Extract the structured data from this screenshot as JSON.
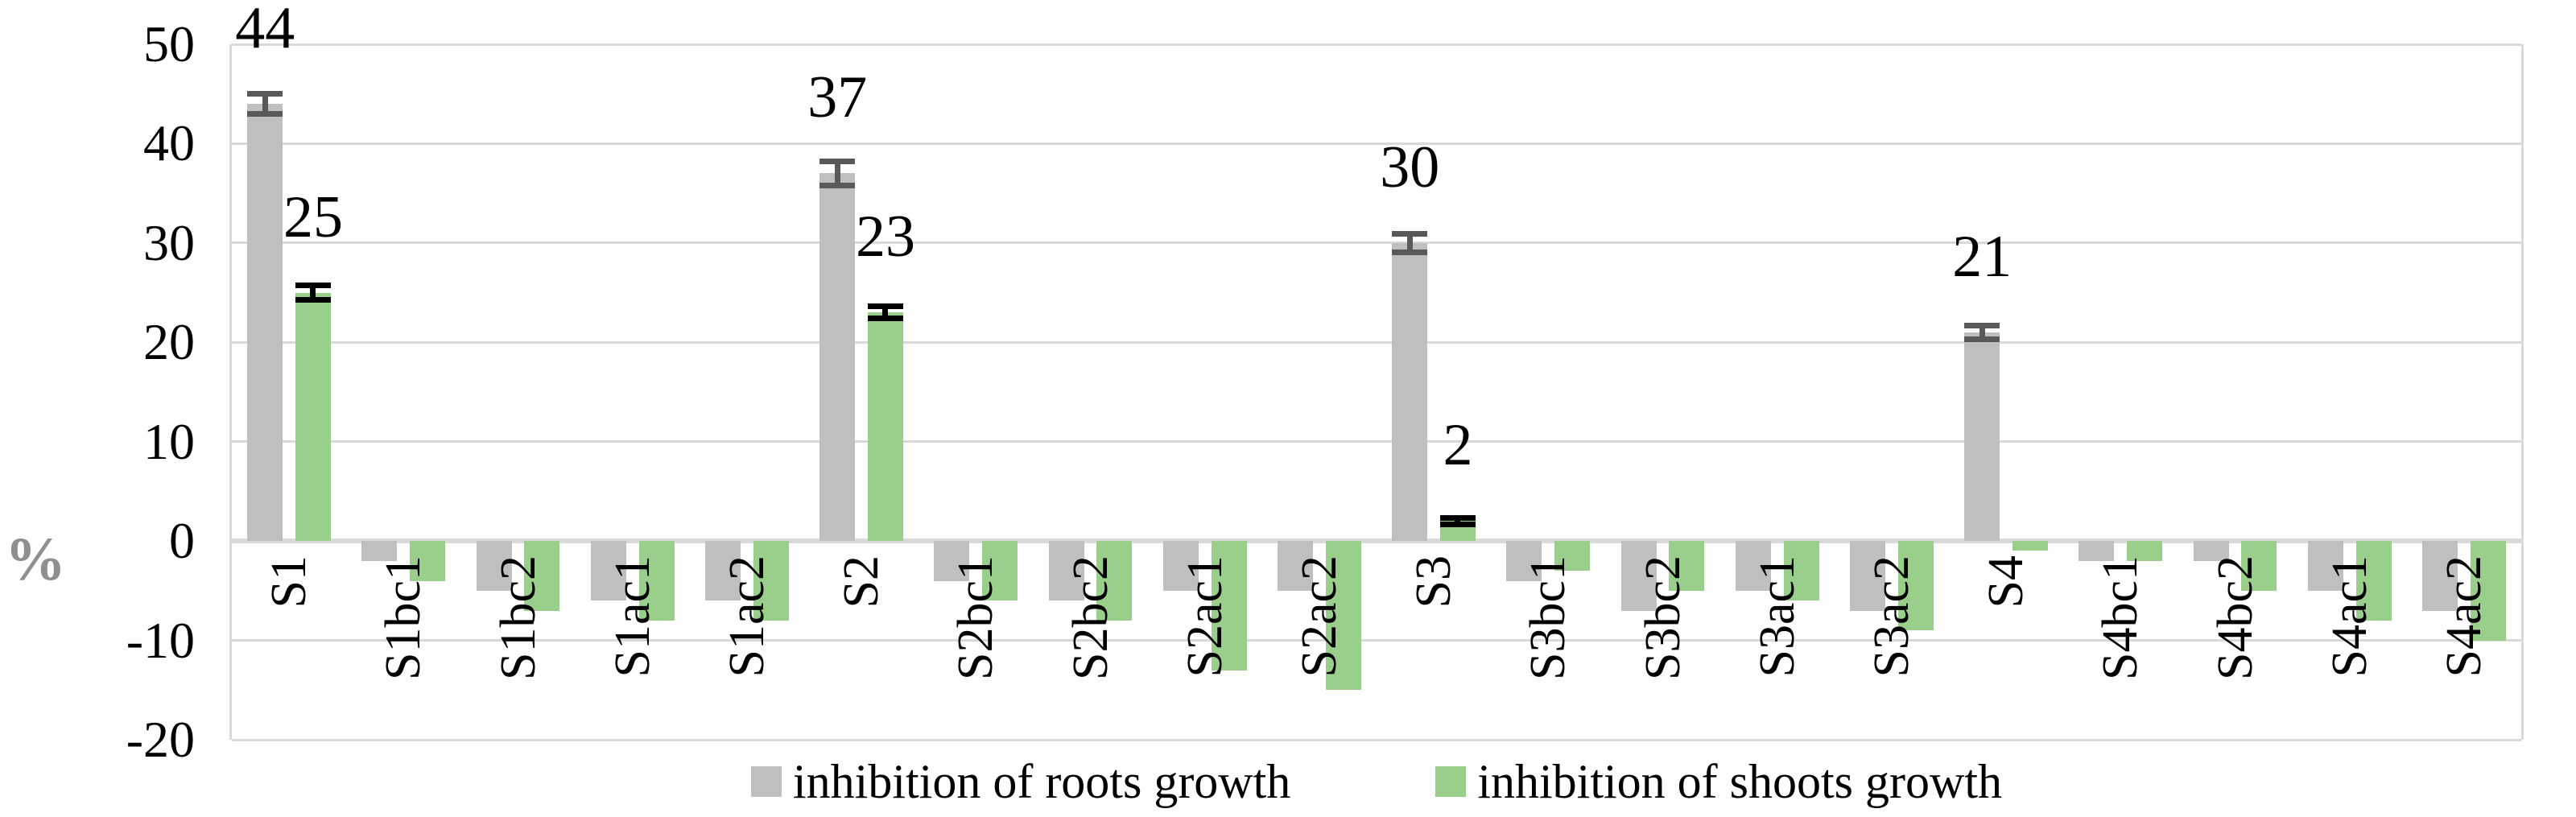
{
  "chart_data": {
    "type": "bar",
    "title": "",
    "ylabel": "%",
    "xlabel": "",
    "ylim": [
      -20,
      50
    ],
    "yticks": [
      50,
      40,
      30,
      20,
      10,
      0,
      -10,
      -20
    ],
    "grid": true,
    "legend_position": "bottom",
    "categories": [
      "S1",
      "S1bc1",
      "S1bc2",
      "S1ac1",
      "S1ac2",
      "S2",
      "S2bc1",
      "S2bc2",
      "S2ac1",
      "S2ac2",
      "S3",
      "S3bc1",
      "S3bc2",
      "S3ac1",
      "S3ac2",
      "S4",
      "S4bc1",
      "S4bc2",
      "S4ac1",
      "S4ac2"
    ],
    "series": [
      {
        "name": "inhibition of roots growth",
        "color": "#BFBFBF",
        "error_color": "#595959",
        "values": [
          44,
          -2,
          -5,
          -6,
          -6,
          37,
          -4,
          -6,
          -5,
          -5,
          30,
          -4,
          -7,
          -5,
          -7,
          21,
          -2,
          -2,
          -5,
          -7
        ],
        "errors": [
          1.3,
          0,
          0,
          0,
          0,
          1.5,
          0,
          0,
          0,
          0,
          1.2,
          0,
          0,
          0,
          0,
          1.0,
          0,
          0,
          0,
          0
        ],
        "data_labels": [
          "44",
          "",
          "",
          "",
          "",
          "37",
          "",
          "",
          "",
          "",
          "30",
          "",
          "",
          "",
          "",
          "21",
          "",
          "",
          "",
          ""
        ]
      },
      {
        "name": "inhibition of shoots growth",
        "color": "#99CF8A",
        "error_color": "#000000",
        "values": [
          25,
          -4,
          -7,
          -8,
          -8,
          23,
          -6,
          -8,
          -13,
          -15,
          2,
          -3,
          -5,
          -6,
          -9,
          -1,
          -2,
          -5,
          -8,
          -10
        ],
        "errors": [
          1.0,
          0,
          0,
          0,
          0,
          0.9,
          0,
          0,
          0,
          0,
          0.6,
          0,
          0,
          0,
          0,
          0,
          0,
          0,
          0,
          0
        ],
        "data_labels": [
          "25",
          "",
          "",
          "",
          "",
          "23",
          "",
          "",
          "",
          "",
          "2",
          "",
          "",
          "",
          "",
          "",
          "",
          "",
          "",
          ""
        ]
      }
    ]
  },
  "colors": {
    "gridline": "#d9d9d9",
    "axis_title": "#8f8f8f",
    "text": "#000000",
    "background": "#ffffff"
  }
}
